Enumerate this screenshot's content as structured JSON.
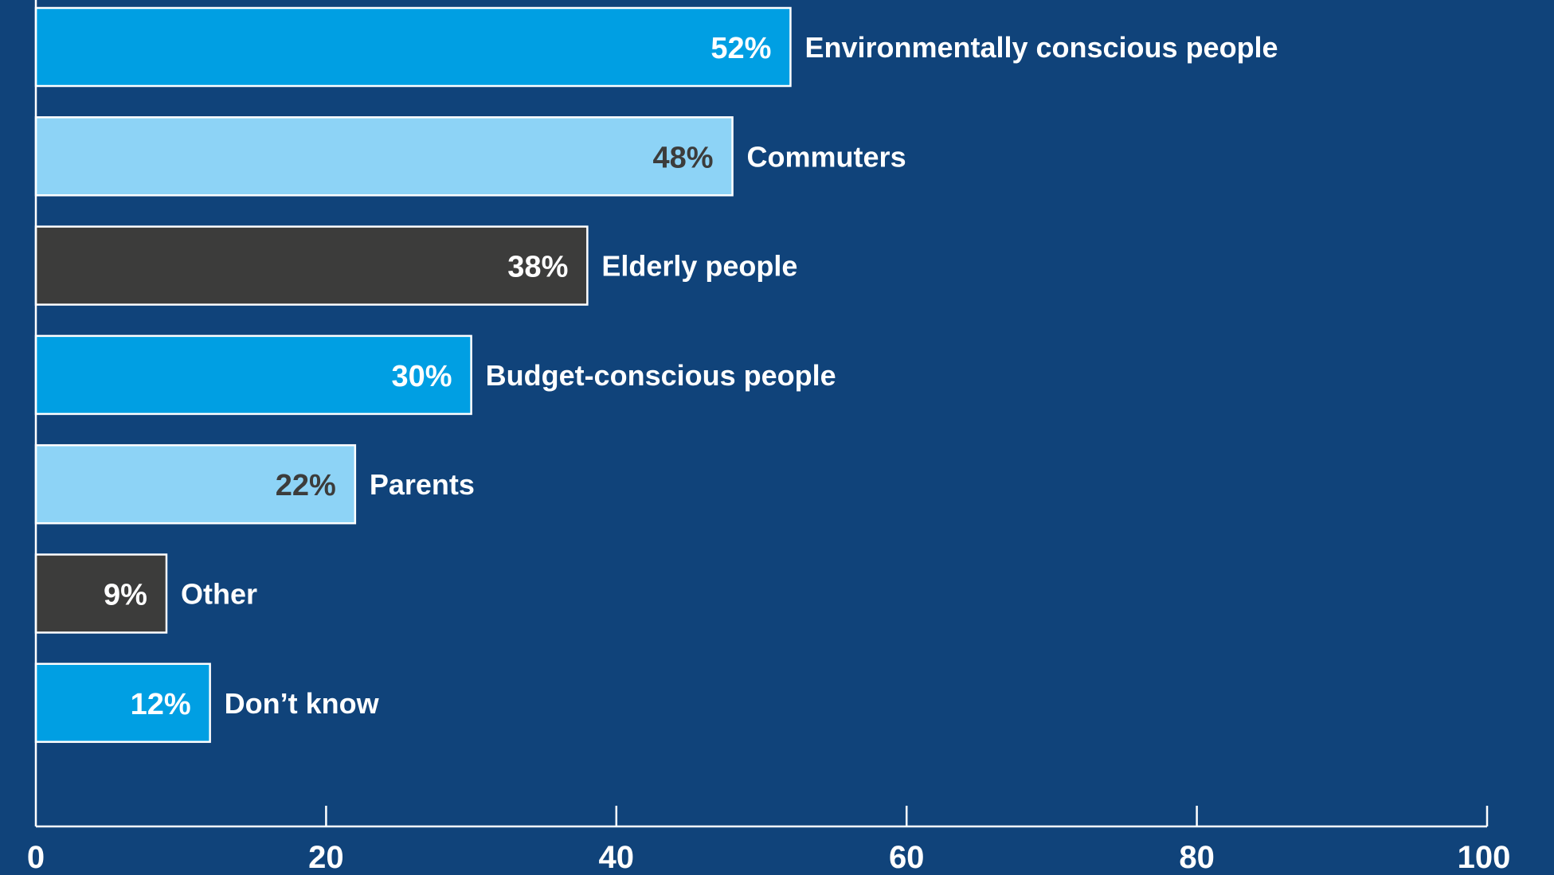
{
  "chart_data": {
    "type": "bar",
    "orientation": "horizontal",
    "title": "",
    "xlabel": "",
    "ylabel": "",
    "xlim": [
      0,
      100
    ],
    "x_ticks": [
      "0",
      "20",
      "40",
      "60",
      "80",
      "100"
    ],
    "grid": false,
    "legend": "none",
    "categories": [
      "Environmentally conscious people",
      "Commuters",
      "Elderly people",
      "Budget-conscious people",
      "Parents",
      "Other",
      "Don’t know"
    ],
    "values": [
      52,
      48,
      38,
      30,
      22,
      9,
      12
    ],
    "value_labels": [
      "52%",
      "48%",
      "38%",
      "30%",
      "22%",
      "9%",
      "12%"
    ],
    "bar_colors": [
      "#009fe3",
      "#8dd3f6",
      "#3c3c3b",
      "#009fe3",
      "#8dd3f6",
      "#3c3c3b",
      "#009fe3"
    ],
    "value_label_colors": [
      "#ffffff",
      "#3c3c3b",
      "#ffffff",
      "#ffffff",
      "#3c3c3b",
      "#ffffff",
      "#ffffff"
    ]
  },
  "colors": {
    "background": "#10437a",
    "axis": "#ffffff",
    "bar_outline": "#ffffff",
    "label": "#ffffff"
  }
}
